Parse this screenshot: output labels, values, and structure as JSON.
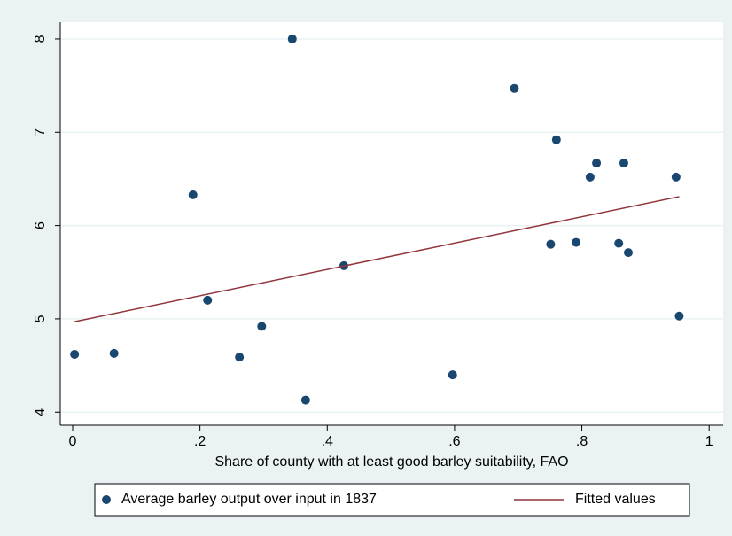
{
  "chart_data": {
    "type": "scatter",
    "x_label": "Share of county with at least good barley suitability, FAO",
    "xlim": [
      -0.0195,
      1.022
    ],
    "ylim": [
      3.86,
      8.18
    ],
    "xticks": [
      0,
      {
        "value": 0.2,
        "label": ".2"
      },
      {
        "value": 0.4,
        "label": ".4"
      },
      {
        "value": 0.6,
        "label": ".6"
      },
      {
        "value": 0.8,
        "label": ".8"
      },
      1
    ],
    "yticks": [
      4,
      5,
      6,
      7,
      8
    ],
    "grid": true,
    "legend": "bottom",
    "series": [
      {
        "name": "Average barley output over input in 1837",
        "type": "scatter",
        "color": "#1a476f",
        "x": [
          0.003,
          0.065,
          0.189,
          0.212,
          0.262,
          0.297,
          0.345,
          0.366,
          0.426,
          0.597,
          0.694,
          0.751,
          0.76,
          0.791,
          0.813,
          0.823,
          0.858,
          0.866,
          0.873,
          0.948,
          0.953
        ],
        "values": [
          4.62,
          4.63,
          6.33,
          5.2,
          4.59,
          4.92,
          8.0,
          4.13,
          5.57,
          4.4,
          7.47,
          5.8,
          6.92,
          5.82,
          6.52,
          6.67,
          5.81,
          6.67,
          5.71,
          6.52,
          5.03
        ]
      },
      {
        "name": "Fitted values",
        "type": "line",
        "color": "#90353b",
        "x": [
          0.003,
          0.953
        ],
        "values": [
          4.97,
          6.31
        ]
      }
    ]
  }
}
